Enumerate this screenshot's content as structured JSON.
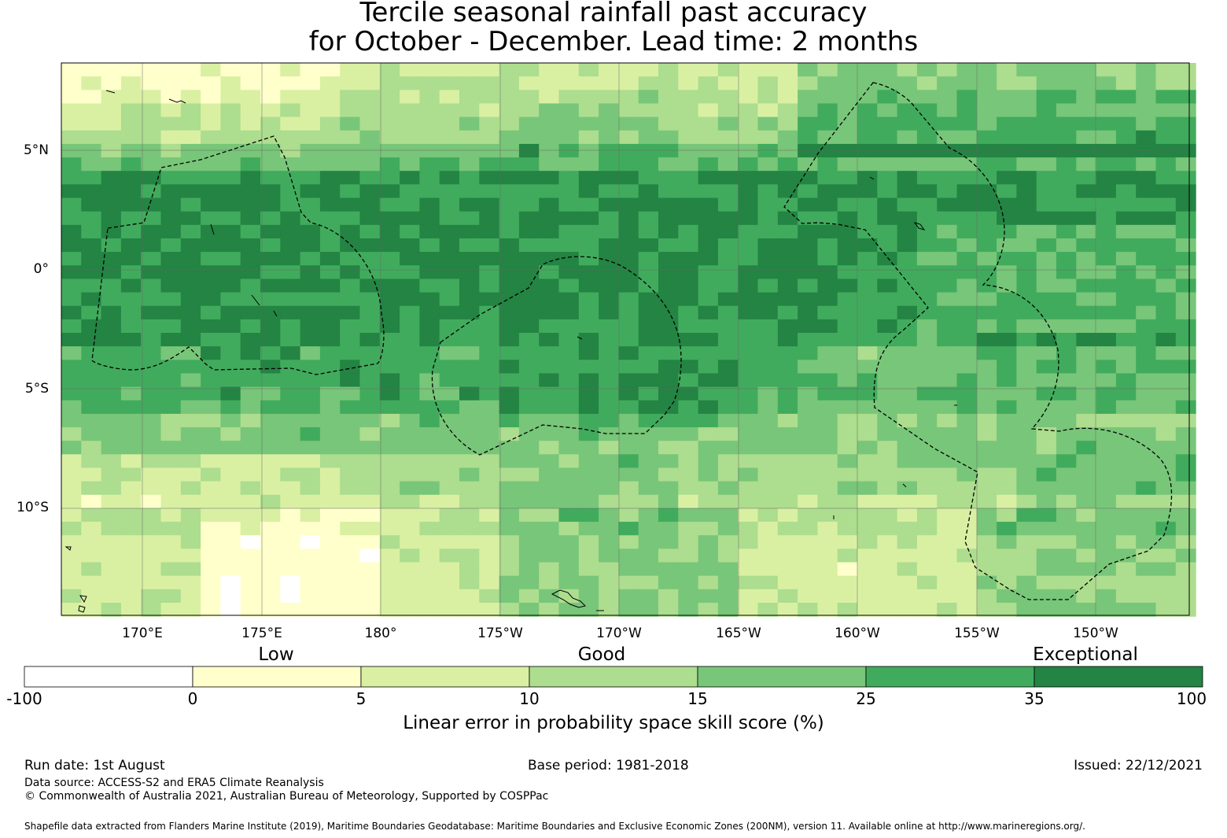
{
  "title_line1": "Tercile seasonal rainfall past accuracy",
  "title_line2": "for October - December. Lead time: 2 months",
  "map": {
    "lat_labels": [
      "5°N",
      "0°",
      "5°S",
      "10°S"
    ],
    "lon_labels": [
      "170°E",
      "175°E",
      "180°",
      "175°W",
      "170°W",
      "165°W",
      "160°W",
      "155°W",
      "150°W"
    ],
    "colors": {
      "lt0": "#ffffff",
      "0-5": "#ffffcc",
      "5-10": "#d9f0a3",
      "10-15": "#addd8e",
      "15-25": "#78c679",
      "25-35": "#41ab5d",
      "35-100": "#238443"
    }
  },
  "colorbar": {
    "category_labels": [
      "Low",
      "Good",
      "Exceptional"
    ],
    "ticks": [
      "-100",
      "0",
      "5",
      "10",
      "15",
      "25",
      "35",
      "100"
    ],
    "colors": [
      "#ffffff",
      "#ffffcc",
      "#d9f0a3",
      "#addd8e",
      "#78c679",
      "#41ab5d",
      "#238443"
    ],
    "label": "Linear error in probability space skill score (%)"
  },
  "footer": {
    "run_date": "Run date: 1st August",
    "base_period": "Base period: 1981-2018",
    "issued": "Issued: 22/12/2021",
    "data_source": "Data source: ACCESS-S2 and ERA5 Climate Reanalysis",
    "copyright": "© Commonwealth of Australia 2021, Australian Bureau of Meteorology, Supported by COSPPac",
    "shapefile": "Shapefile data extracted from Flanders Marine Institute (2019), Maritime Boundaries Geodatabase: Maritime Boundaries and Exclusive Economic Zones (200NM), version 11. Available online at http://www.marineregions.org/."
  }
}
